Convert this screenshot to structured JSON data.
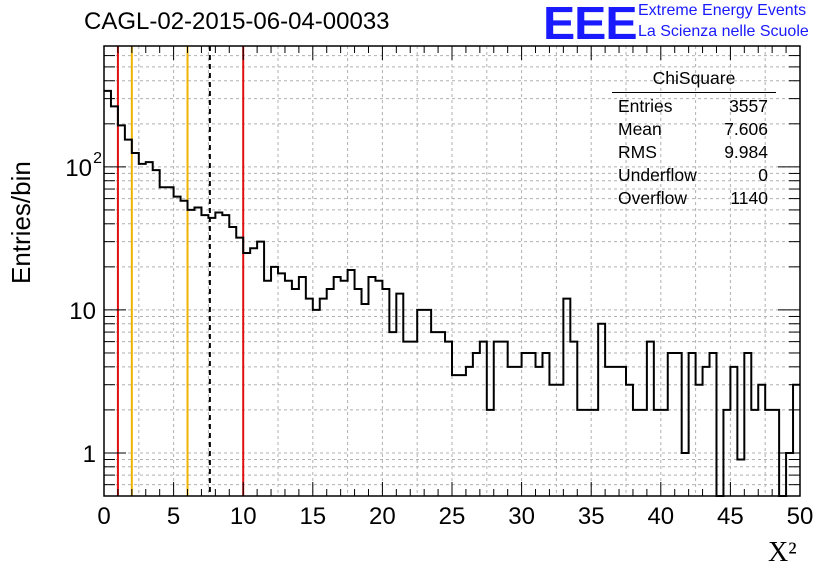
{
  "title": "CAGL-02-2015-06-04-00033",
  "brand": {
    "logo": "EEE",
    "line1": "Extreme Energy Events",
    "line2": "La Scienza nelle Scuole",
    "color": "#1a1aff"
  },
  "stats": {
    "title": "ChiSquare",
    "rows": [
      {
        "label": "Entries",
        "value": "3557"
      },
      {
        "label": "Mean",
        "value": "7.606"
      },
      {
        "label": "RMS",
        "value": "9.984"
      },
      {
        "label": "Underflow",
        "value": "0"
      },
      {
        "label": "Overflow",
        "value": "1140"
      }
    ]
  },
  "chart_data": {
    "type": "bar",
    "histogram_style": "step",
    "ylabel": "Entries/bin",
    "xlabel": "X²",
    "xlim": [
      0,
      50
    ],
    "ylim": [
      0.5,
      700
    ],
    "yscale": "log",
    "grid": true,
    "bin_width": 0.5,
    "xticks": [
      "0",
      "5",
      "10",
      "15",
      "20",
      "25",
      "30",
      "35",
      "40",
      "45",
      "50"
    ],
    "yticks": [
      {
        "value": 1,
        "label": "1"
      },
      {
        "value": 10,
        "label": "10"
      },
      {
        "value": 100,
        "label": "10",
        "sup": "2"
      }
    ],
    "values": [
      340,
      265,
      195,
      155,
      125,
      105,
      108,
      95,
      72,
      72,
      62,
      58,
      50,
      52,
      46,
      44,
      48,
      46,
      38,
      32,
      25,
      27,
      30,
      16,
      20,
      18,
      16,
      14,
      17,
      12,
      10,
      12,
      14,
      17,
      16,
      19,
      14,
      11,
      17,
      16,
      14,
      7,
      13,
      6,
      6,
      10,
      10,
      7,
      7,
      6,
      3.5,
      3.5,
      4,
      5,
      6,
      2,
      6,
      6,
      4,
      4,
      5,
      5,
      4,
      5,
      3,
      3,
      12,
      6,
      2,
      2,
      2,
      8,
      4,
      4,
      4,
      3,
      2,
      2,
      6,
      2,
      2,
      5,
      5,
      1,
      5,
      3,
      4,
      5,
      0,
      2,
      4,
      0.9,
      5,
      2,
      3,
      2,
      2,
      0,
      1,
      3
    ],
    "vlines": [
      {
        "x": 1,
        "color": "#e01010",
        "style": "solid"
      },
      {
        "x": 2,
        "color": "#f0b400",
        "style": "solid"
      },
      {
        "x": 6,
        "color": "#f0b400",
        "style": "solid"
      },
      {
        "x": 7.606,
        "color": "#000000",
        "style": "dashed"
      },
      {
        "x": 10,
        "color": "#e01010",
        "style": "solid"
      }
    ]
  }
}
